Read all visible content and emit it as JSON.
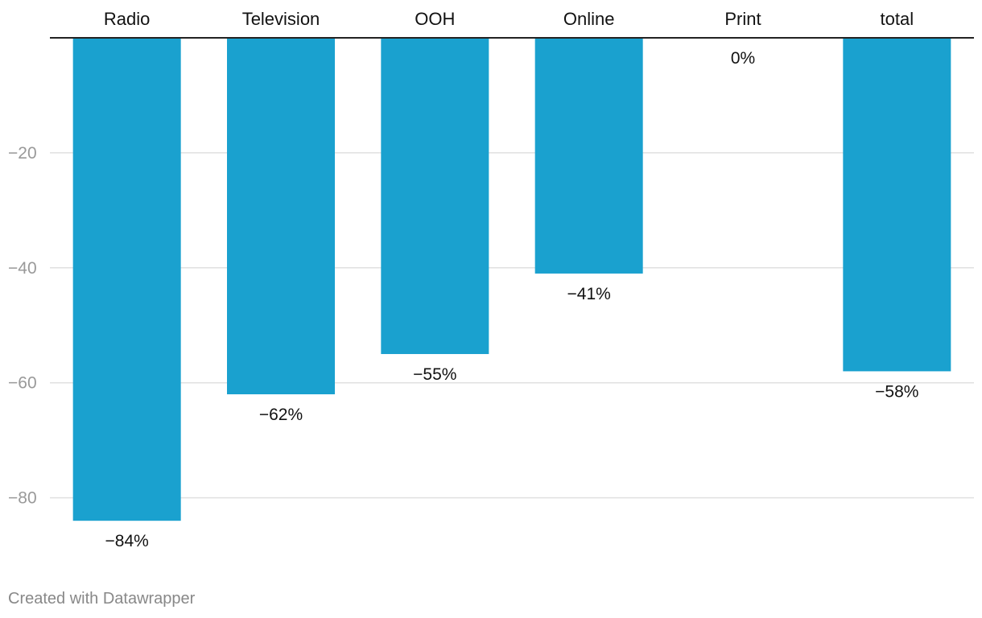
{
  "chart_data": {
    "type": "bar",
    "orientation": "vertical-downward",
    "categories": [
      "Radio",
      "Television",
      "OOH",
      "Online",
      "Print",
      "total"
    ],
    "values": [
      -84,
      -62,
      -55,
      -41,
      0,
      -58
    ],
    "value_labels": [
      "−84%",
      "−62%",
      "−55%",
      "−41%",
      "0%",
      "−58%"
    ],
    "title": "",
    "xlabel": "",
    "ylabel": "",
    "ylim": [
      -84,
      0
    ],
    "y_ticks": [
      -20,
      -40,
      -60,
      -80
    ],
    "y_tick_labels": [
      "−20",
      "−40",
      "−60",
      "−80"
    ],
    "grid": true,
    "category_axis_position": "top",
    "bar_color": "#1aa1cf",
    "grid_color": "#e0e0e0",
    "axis_color": "#222222",
    "tick_label_color": "#999999"
  },
  "footer": {
    "credit": "Created with Datawrapper"
  }
}
